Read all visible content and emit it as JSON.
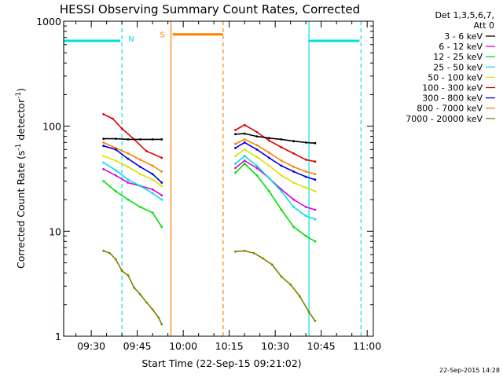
{
  "chart_data": {
    "type": "line",
    "title": "HESSI Observing Summary Count Rates, Corrected",
    "xlabel": "Start Time (22-Sep-15 09:21:02)",
    "ylabel": "Corrected Count Rate (s⁻¹ detector⁻¹)",
    "ylabel_main": "Corrected Count Rate (s",
    "ylabel_mid": " detector",
    "ylabel_end": ")",
    "ylabel_exp": "-1",
    "y_scale": "log",
    "ylim": [
      1,
      1000
    ],
    "xlim": [
      "09:21",
      "11:02"
    ],
    "x_ticks": [
      "09:30",
      "09:45",
      "10:00",
      "10:15",
      "10:30",
      "10:45",
      "11:00"
    ],
    "y_ticks": [
      "1",
      "10",
      "100",
      "1000"
    ],
    "legend_header": [
      "Det 1,3,5,6,7,",
      "Att 0"
    ],
    "legend_position": "right",
    "series": [
      {
        "name": "3 - 6 keV",
        "color": "#000000",
        "segments": [
          {
            "x": [
              "09:34",
              "09:38",
              "09:42",
              "09:46",
              "09:50",
              "09:53"
            ],
            "y": [
              76,
              76,
              75,
              75,
              75,
              75
            ]
          },
          {
            "x": [
              "10:17",
              "10:20",
              "10:24",
              "10:28",
              "10:32",
              "10:36",
              "10:40",
              "10:43"
            ],
            "y": [
              84,
              85,
              80,
              77,
              75,
              72,
              70,
              69
            ]
          }
        ]
      },
      {
        "name": "6 - 12 keV",
        "color": "#e000e0",
        "segments": [
          {
            "x": [
              "09:34",
              "09:38",
              "09:42",
              "09:46",
              "09:50",
              "09:53"
            ],
            "y": [
              39,
              34,
              29,
              27,
              25,
              22
            ]
          },
          {
            "x": [
              "10:17",
              "10:20",
              "10:24",
              "10:28",
              "10:32",
              "10:36",
              "10:40",
              "10:43"
            ],
            "y": [
              40,
              47,
              40,
              32,
              25,
              20,
              17,
              16
            ]
          }
        ]
      },
      {
        "name": "12 - 25 keV",
        "color": "#00e000",
        "segments": [
          {
            "x": [
              "09:34",
              "09:38",
              "09:42",
              "09:46",
              "09:50",
              "09:53"
            ],
            "y": [
              30,
              24,
              20,
              17,
              15,
              11
            ]
          },
          {
            "x": [
              "10:17",
              "10:20",
              "10:24",
              "10:28",
              "10:32",
              "10:36",
              "10:40",
              "10:43"
            ],
            "y": [
              36,
              44,
              34,
              24,
              16,
              11,
              9,
              8
            ]
          }
        ]
      },
      {
        "name": "25 - 50 keV",
        "color": "#00e0e0",
        "segments": [
          {
            "x": [
              "09:34",
              "09:38",
              "09:42",
              "09:46",
              "09:50",
              "09:53"
            ],
            "y": [
              45,
              38,
              31,
              27,
              23,
              20
            ]
          },
          {
            "x": [
              "10:17",
              "10:20",
              "10:24",
              "10:28",
              "10:32",
              "10:36",
              "10:40",
              "10:43"
            ],
            "y": [
              44,
              52,
              42,
              32,
              24,
              17,
              14,
              13
            ]
          }
        ]
      },
      {
        "name": "50 - 100 keV",
        "color": "#e0e000",
        "segments": [
          {
            "x": [
              "09:34",
              "09:38",
              "09:42",
              "09:46",
              "09:50",
              "09:53"
            ],
            "y": [
              52,
              47,
              41,
              35,
              31,
              27
            ]
          },
          {
            "x": [
              "10:17",
              "10:20",
              "10:24",
              "10:28",
              "10:32",
              "10:36",
              "10:40",
              "10:43"
            ],
            "y": [
              52,
              60,
              51,
              42,
              34,
              29,
              26,
              24
            ]
          }
        ]
      },
      {
        "name": "100 - 300 keV",
        "color": "#e00000",
        "segments": [
          {
            "x": [
              "09:34",
              "09:37",
              "09:40",
              "09:44",
              "09:48",
              "09:53"
            ],
            "y": [
              130,
              118,
              95,
              75,
              58,
              50
            ]
          },
          {
            "x": [
              "10:17",
              "10:20",
              "10:24",
              "10:28",
              "10:32",
              "10:36",
              "10:40",
              "10:43"
            ],
            "y": [
              92,
              103,
              88,
              73,
              63,
              55,
              48,
              46
            ]
          }
        ]
      },
      {
        "name": "300 - 800 keV",
        "color": "#0000e0",
        "segments": [
          {
            "x": [
              "09:34",
              "09:38",
              "09:42",
              "09:46",
              "09:50",
              "09:53"
            ],
            "y": [
              65,
              60,
              49,
              41,
              35,
              29
            ]
          },
          {
            "x": [
              "10:17",
              "10:20",
              "10:24",
              "10:28",
              "10:32",
              "10:36",
              "10:40",
              "10:43"
            ],
            "y": [
              62,
              70,
              60,
              50,
              42,
              37,
              33,
              31
            ]
          }
        ]
      },
      {
        "name": "800 - 7000 keV",
        "color": "#ff8000",
        "segments": [
          {
            "x": [
              "09:34",
              "09:38",
              "09:42",
              "09:46",
              "09:50",
              "09:53"
            ],
            "y": [
              70,
              62,
              55,
              48,
              42,
              37
            ]
          },
          {
            "x": [
              "10:17",
              "10:20",
              "10:24",
              "10:28",
              "10:32",
              "10:36",
              "10:40",
              "10:43"
            ],
            "y": [
              68,
              75,
              66,
              56,
              47,
              41,
              37,
              35
            ]
          }
        ]
      },
      {
        "name": "7000 - 20000 keV",
        "color": "#808000",
        "segments": [
          {
            "x": [
              "09:34",
              "09:36",
              "09:38",
              "09:40",
              "09:42",
              "09:44",
              "09:46",
              "09:48",
              "09:50",
              "09:52",
              "09:53"
            ],
            "y": [
              6.5,
              6.2,
              5.4,
              4.2,
              3.8,
              2.9,
              2.5,
              2.1,
              1.8,
              1.5,
              1.3
            ]
          },
          {
            "x": [
              "10:17",
              "10:20",
              "10:23",
              "10:26",
              "10:29",
              "10:32",
              "10:35",
              "10:38",
              "10:41",
              "10:43"
            ],
            "y": [
              6.4,
              6.5,
              6.2,
              5.5,
              4.8,
              3.7,
              3.1,
              2.4,
              1.7,
              1.4
            ]
          }
        ]
      }
    ],
    "night_markers": [
      {
        "label": "N",
        "color": "#00e0e0",
        "start": "09:21",
        "end": "09:40",
        "y": 650
      },
      {
        "label": "",
        "color": "#00e0e0",
        "start": "10:41",
        "end": "10:58",
        "y": 650
      }
    ],
    "saa_markers": [
      {
        "label": "S",
        "color": "#ff8000",
        "start": "09:56",
        "end": "10:13",
        "y": 750
      }
    ],
    "stamp": "22-Sep-2015 14:28"
  }
}
